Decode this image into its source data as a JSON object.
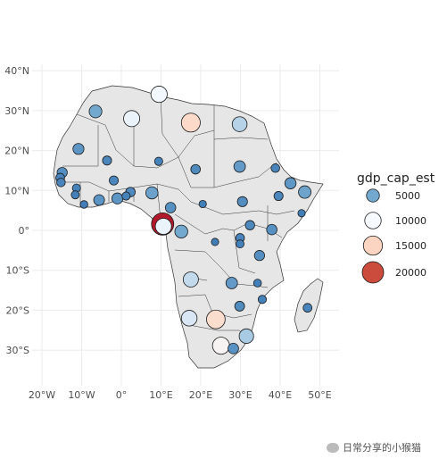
{
  "legend": {
    "title": "gdp_cap_est",
    "entries": [
      {
        "label": "5000",
        "value": 5000,
        "color": "#74a9cf"
      },
      {
        "label": "10000",
        "value": 10000,
        "color": "#f7fbff"
      },
      {
        "label": "15000",
        "value": 15000,
        "color": "#fcd5c2"
      },
      {
        "label": "20000",
        "value": 20000,
        "color": "#cb4c3c"
      }
    ]
  },
  "axes": {
    "x_ticks": [
      {
        "label": "20°W",
        "lon": -20
      },
      {
        "label": "10°W",
        "lon": -10
      },
      {
        "label": "0°",
        "lon": 0
      },
      {
        "label": "10°E",
        "lon": 10
      },
      {
        "label": "20°E",
        "lon": 20
      },
      {
        "label": "30°E",
        "lon": 30
      },
      {
        "label": "40°E",
        "lon": 40
      },
      {
        "label": "50°E",
        "lon": 50
      }
    ],
    "y_ticks": [
      {
        "label": "40°N",
        "lat": 40
      },
      {
        "label": "30°N",
        "lat": 30
      },
      {
        "label": "20°N",
        "lat": 20
      },
      {
        "label": "10°N",
        "lat": 10
      },
      {
        "label": "0°",
        "lat": 0
      },
      {
        "label": "10°S",
        "lat": -10
      },
      {
        "label": "20°S",
        "lat": -20
      },
      {
        "label": "30°S",
        "lat": -30
      }
    ],
    "xlim": [
      -22,
      55
    ],
    "ylim": [
      -38,
      41
    ]
  },
  "points": [
    {
      "lon": -6.5,
      "lat": 29.8,
      "gdp": 4800
    },
    {
      "lon": 2.6,
      "lat": 28.0,
      "gdp": 9500
    },
    {
      "lon": 9.5,
      "lat": 34.1,
      "gdp": 9800
    },
    {
      "lon": 17.5,
      "lat": 27.0,
      "gdp": 14500
    },
    {
      "lon": 29.8,
      "lat": 26.6,
      "gdp": 7500
    },
    {
      "lon": -10.8,
      "lat": 20.4,
      "gdp": 3000
    },
    {
      "lon": -3.6,
      "lat": 17.5,
      "gdp": 1500
    },
    {
      "lon": 9.4,
      "lat": 17.3,
      "gdp": 1000
    },
    {
      "lon": 18.7,
      "lat": 15.3,
      "gdp": 1800
    },
    {
      "lon": 29.8,
      "lat": 16.0,
      "gdp": 3500
    },
    {
      "lon": 38.8,
      "lat": 15.6,
      "gdp": 1200
    },
    {
      "lon": -14.9,
      "lat": 14.5,
      "gdp": 2300
    },
    {
      "lon": -15.4,
      "lat": 13.2,
      "gdp": 1300
    },
    {
      "lon": -15.2,
      "lat": 12.0,
      "gdp": 1200
    },
    {
      "lon": -11.3,
      "lat": 10.6,
      "gdp": 1000
    },
    {
      "lon": -11.6,
      "lat": 8.9,
      "gdp": 900
    },
    {
      "lon": -9.4,
      "lat": 6.5,
      "gdp": 700
    },
    {
      "lon": -1.9,
      "lat": 12.5,
      "gdp": 1500
    },
    {
      "lon": -5.6,
      "lat": 7.6,
      "gdp": 2800
    },
    {
      "lon": -1.0,
      "lat": 8.0,
      "gdp": 3000
    },
    {
      "lon": 1.2,
      "lat": 8.6,
      "gdp": 1000
    },
    {
      "lon": 2.3,
      "lat": 9.6,
      "gdp": 1800
    },
    {
      "lon": 7.7,
      "lat": 9.4,
      "gdp": 4200
    },
    {
      "lon": 12.4,
      "lat": 5.7,
      "gdp": 2500
    },
    {
      "lon": 20.5,
      "lat": 6.6,
      "gdp": 600
    },
    {
      "lon": 30.5,
      "lat": 7.2,
      "gdp": 2200
    },
    {
      "lon": 39.6,
      "lat": 8.6,
      "gdp": 1500
    },
    {
      "lon": 45.4,
      "lat": 4.3,
      "gdp": 600
    },
    {
      "lon": 42.6,
      "lat": 11.8,
      "gdp": 3200
    },
    {
      "lon": 46.2,
      "lat": 9.6,
      "gdp": 4500
    },
    {
      "lon": 10.4,
      "lat": 1.6,
      "gdp": 22000
    },
    {
      "lon": 10.6,
      "lat": 1.0,
      "gdp": 9500
    },
    {
      "lon": 15.1,
      "lat": -0.3,
      "gdp": 5000
    },
    {
      "lon": 23.6,
      "lat": -2.9,
      "gdp": 600
    },
    {
      "lon": 29.9,
      "lat": -1.9,
      "gdp": 1300
    },
    {
      "lon": 29.9,
      "lat": -3.4,
      "gdp": 900
    },
    {
      "lon": 32.4,
      "lat": 1.3,
      "gdp": 1700
    },
    {
      "lon": 37.9,
      "lat": 0.2,
      "gdp": 2500
    },
    {
      "lon": 34.8,
      "lat": -6.3,
      "gdp": 2300
    },
    {
      "lon": 17.5,
      "lat": -12.3,
      "gdp": 8000
    },
    {
      "lon": 27.8,
      "lat": -13.2,
      "gdp": 3500
    },
    {
      "lon": 34.3,
      "lat": -13.2,
      "gdp": 800
    },
    {
      "lon": 35.5,
      "lat": -17.3,
      "gdp": 1000
    },
    {
      "lon": 29.8,
      "lat": -19.0,
      "gdp": 2000
    },
    {
      "lon": 46.9,
      "lat": -19.4,
      "gdp": 1300
    },
    {
      "lon": 17.1,
      "lat": -22.0,
      "gdp": 8800
    },
    {
      "lon": 23.8,
      "lat": -22.3,
      "gdp": 14000
    },
    {
      "lon": 31.5,
      "lat": -26.5,
      "gdp": 7000
    },
    {
      "lon": 25.1,
      "lat": -28.9,
      "gdp": 11000
    },
    {
      "lon": 28.2,
      "lat": -29.6,
      "gdp": 2600
    }
  ],
  "watermark": {
    "text": "日常分享的小猴猫"
  }
}
